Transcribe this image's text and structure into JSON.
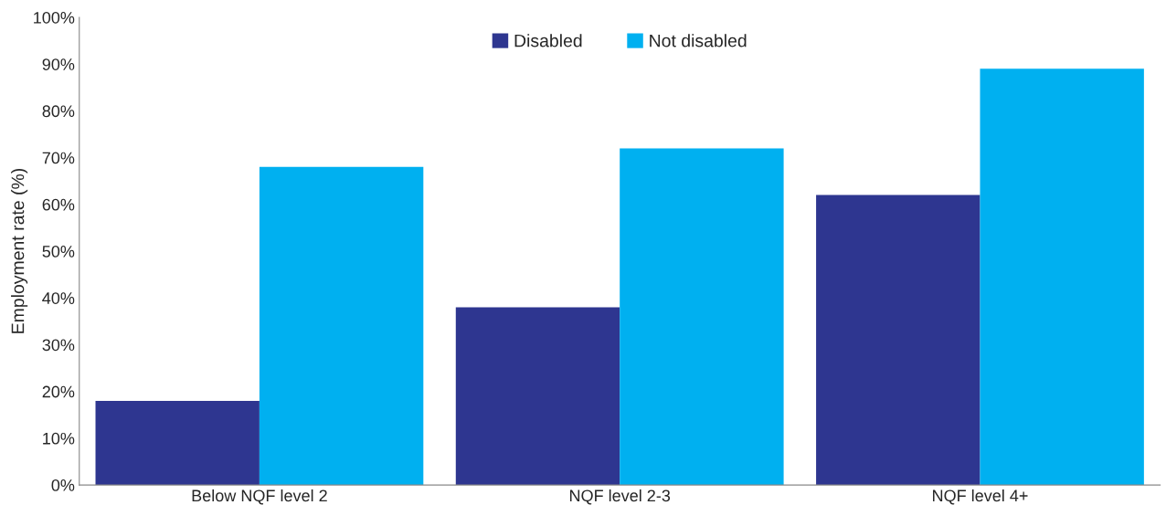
{
  "chart_data": {
    "type": "bar",
    "ylabel": "Employment rate (%)",
    "categories": [
      "Below NQF level 2",
      "NQF level 2-3",
      "NQF level 4+"
    ],
    "series": [
      {
        "name": "Disabled",
        "color": "#2e3690",
        "values": [
          18,
          38,
          62
        ]
      },
      {
        "name": "Not disabled",
        "color": "#00b0f0",
        "values": [
          68,
          72,
          89
        ]
      }
    ],
    "ylim": [
      0,
      100
    ],
    "yticks": [
      {
        "value": 0,
        "label": "0%"
      },
      {
        "value": 10,
        "label": "10%"
      },
      {
        "value": 20,
        "label": "20%"
      },
      {
        "value": 30,
        "label": "30%"
      },
      {
        "value": 40,
        "label": "40%"
      },
      {
        "value": 50,
        "label": "50%"
      },
      {
        "value": 60,
        "label": "60%"
      },
      {
        "value": 70,
        "label": "70%"
      },
      {
        "value": 80,
        "label": "80%"
      },
      {
        "value": 90,
        "label": "90%"
      },
      {
        "value": 100,
        "label": "100%"
      }
    ],
    "grid": false,
    "legend": "top"
  }
}
